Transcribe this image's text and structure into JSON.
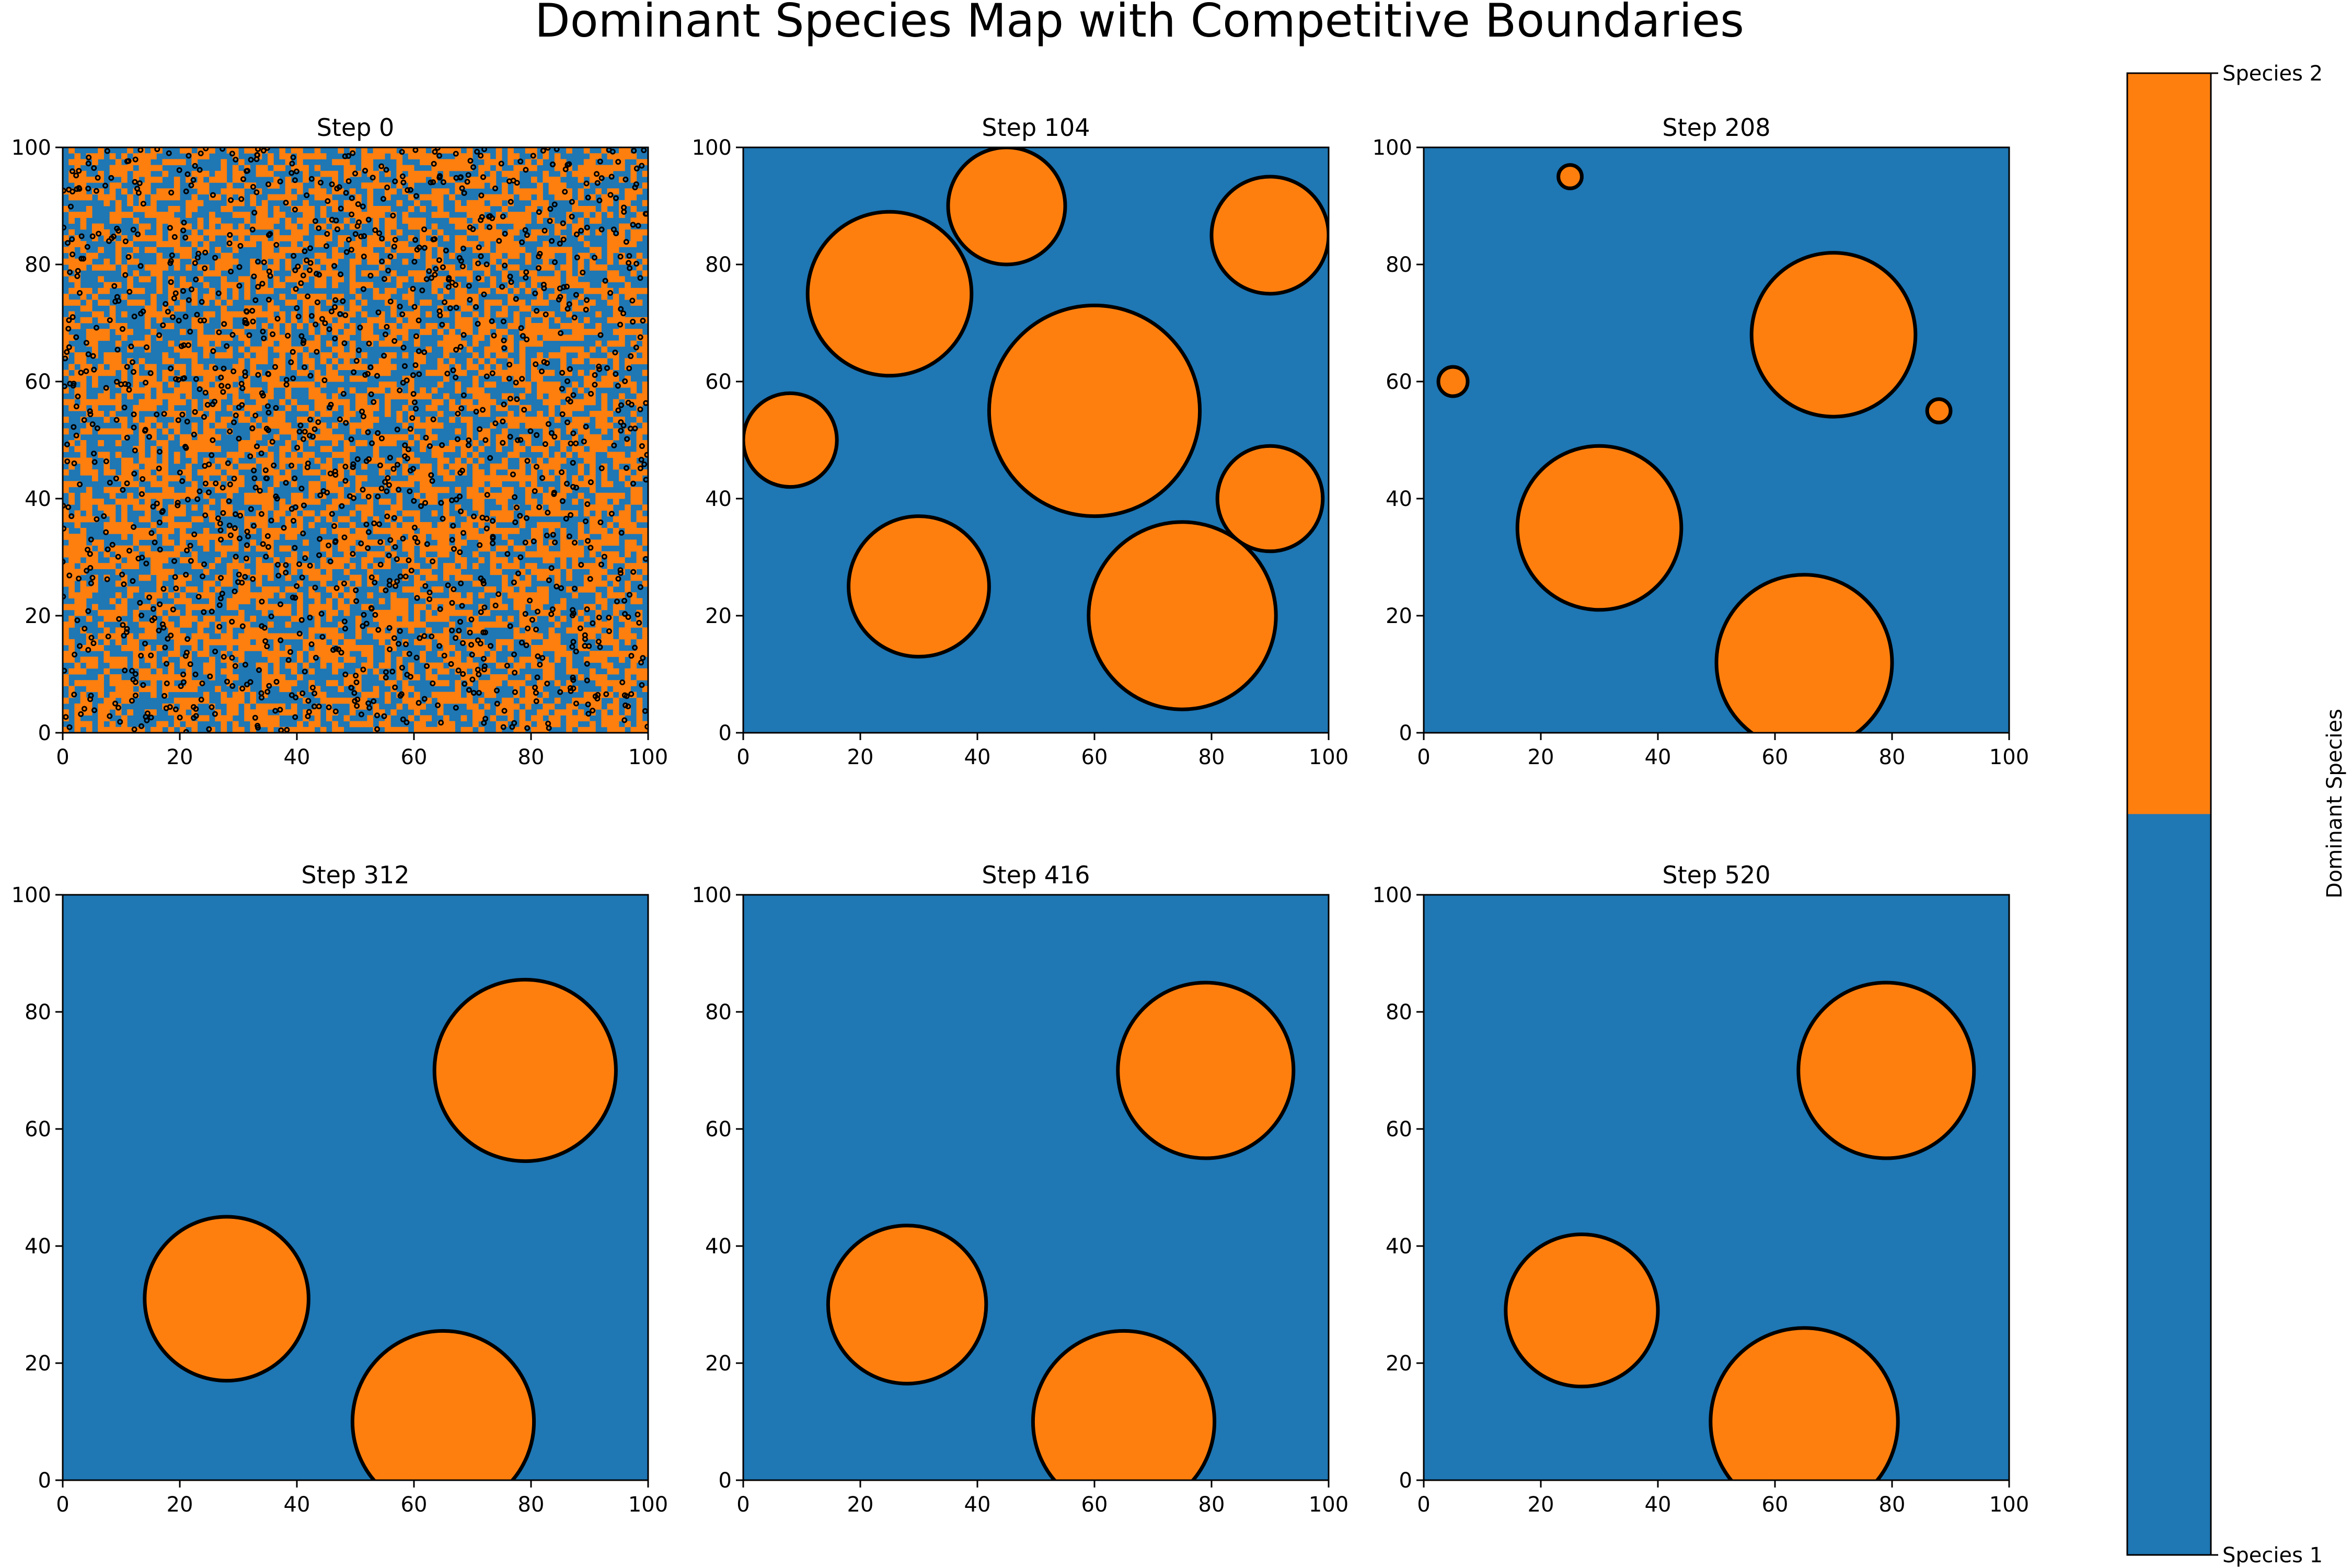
{
  "chart_data": {
    "type": "heatmap",
    "title": "Dominant Species Map with Competitive Boundaries",
    "xlim": [
      0,
      100
    ],
    "ylim": [
      0,
      100
    ],
    "x_ticks": [
      0,
      20,
      40,
      60,
      80,
      100
    ],
    "y_ticks": [
      0,
      20,
      40,
      60,
      80,
      100
    ],
    "colors": {
      "species_1": "#1f77b4",
      "species_2": "#ff7f0e",
      "boundary": "#000000"
    },
    "colorbar": {
      "label": "Dominant Species",
      "ticks": [
        "Species 1",
        "Species 2"
      ],
      "values": [
        1,
        2
      ]
    },
    "panels": [
      {
        "title": "Step 0",
        "pattern": "random-noise",
        "species_2_fraction": 0.5,
        "species_2_regions": []
      },
      {
        "title": "Step 104",
        "pattern": "coarsening",
        "species_2_fraction": 0.55,
        "species_2_regions": [
          {
            "cx": 25,
            "cy": 75,
            "r": 14
          },
          {
            "cx": 60,
            "cy": 55,
            "r": 18
          },
          {
            "cx": 75,
            "cy": 20,
            "r": 16
          },
          {
            "cx": 30,
            "cy": 25,
            "r": 12
          },
          {
            "cx": 90,
            "cy": 85,
            "r": 10
          },
          {
            "cx": 45,
            "cy": 90,
            "r": 10
          },
          {
            "cx": 8,
            "cy": 50,
            "r": 8
          },
          {
            "cx": 90,
            "cy": 40,
            "r": 9
          }
        ]
      },
      {
        "title": "Step 208",
        "pattern": "domains",
        "species_2_fraction": 0.25,
        "species_2_regions": [
          {
            "cx": 70,
            "cy": 68,
            "r": 14
          },
          {
            "cx": 30,
            "cy": 35,
            "r": 14
          },
          {
            "cx": 65,
            "cy": 12,
            "r": 15
          },
          {
            "cx": 5,
            "cy": 60,
            "r": 2.5
          },
          {
            "cx": 25,
            "cy": 95,
            "r": 2
          },
          {
            "cx": 88,
            "cy": 55,
            "r": 2
          }
        ]
      },
      {
        "title": "Step 312",
        "pattern": "domains",
        "species_2_fraction": 0.2,
        "species_2_regions": [
          {
            "cx": 79,
            "cy": 70,
            "r": 15.5
          },
          {
            "cx": 28,
            "cy": 31,
            "r": 14
          },
          {
            "cx": 65,
            "cy": 10,
            "r": 15.5
          }
        ]
      },
      {
        "title": "Step 416",
        "pattern": "domains",
        "species_2_fraction": 0.2,
        "species_2_regions": [
          {
            "cx": 79,
            "cy": 70,
            "r": 15
          },
          {
            "cx": 28,
            "cy": 30,
            "r": 13.5
          },
          {
            "cx": 65,
            "cy": 10,
            "r": 15.5
          }
        ]
      },
      {
        "title": "Step 520",
        "pattern": "domains",
        "species_2_fraction": 0.2,
        "species_2_regions": [
          {
            "cx": 79,
            "cy": 70,
            "r": 15
          },
          {
            "cx": 27,
            "cy": 29,
            "r": 13
          },
          {
            "cx": 65,
            "cy": 10,
            "r": 16
          }
        ]
      }
    ]
  }
}
